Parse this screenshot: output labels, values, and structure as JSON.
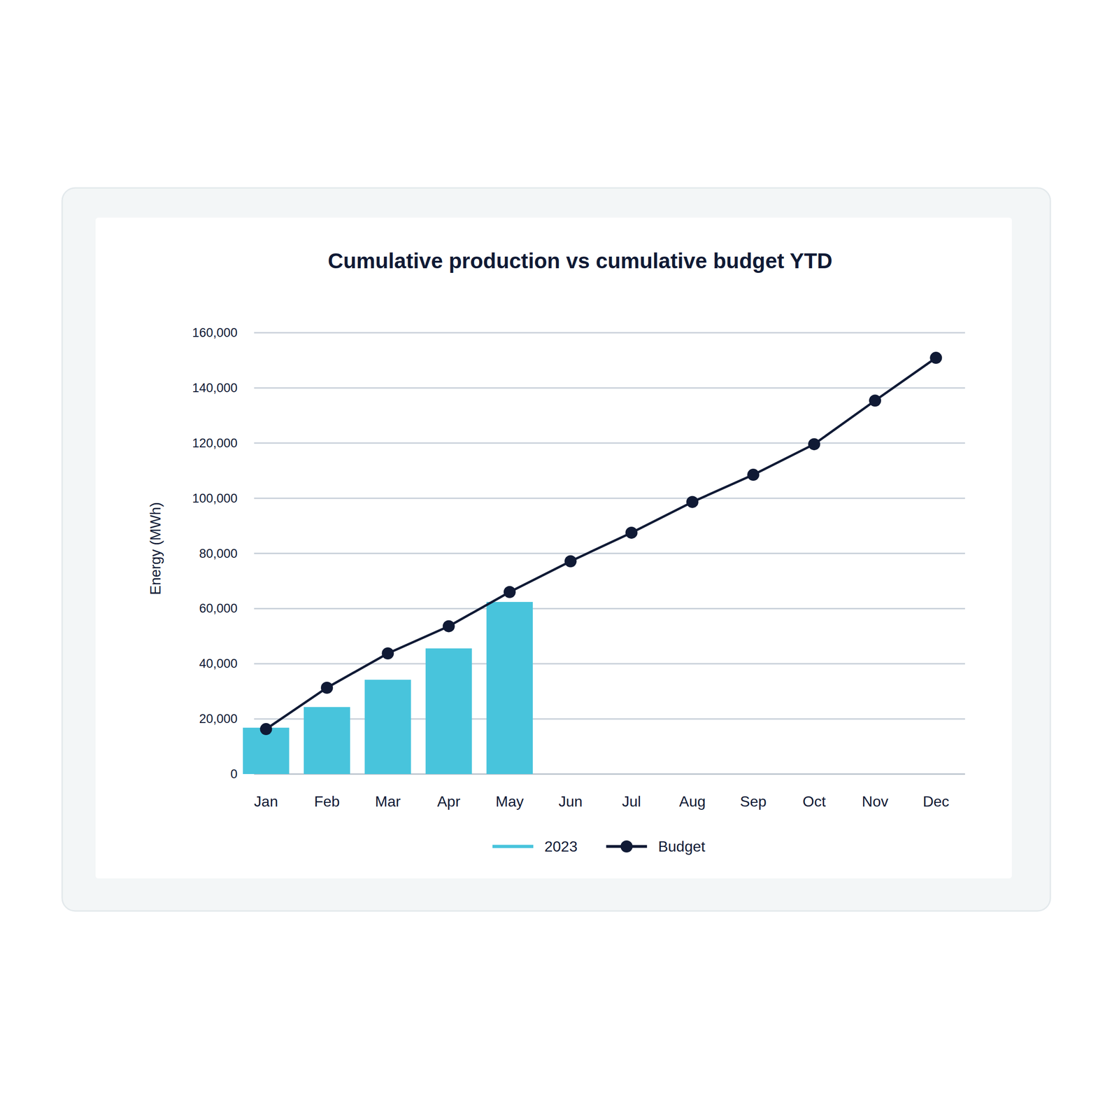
{
  "chart_data": {
    "type": "bar",
    "title": "Cumulative production vs cumulative budget YTD",
    "y_label": "Energy (MWh)",
    "categories": [
      "Jan",
      "Feb",
      "Mar",
      "Apr",
      "May",
      "Jun",
      "Jul",
      "Aug",
      "Sep",
      "Oct",
      "Nov",
      "Dec"
    ],
    "series": [
      {
        "name": "2023",
        "type": "bar",
        "color": "#48c4dc",
        "values": [
          16800,
          24300,
          34200,
          45550,
          62400,
          null,
          null,
          null,
          null,
          null,
          null,
          null
        ]
      },
      {
        "name": "Budget",
        "type": "line",
        "color": "#101a35",
        "marker": "circle",
        "line_style": "solid",
        "values": [
          16300,
          31300,
          43750,
          53600,
          66000,
          77150,
          87500,
          98650,
          108500,
          119600,
          135400,
          150900
        ]
      }
    ],
    "ylim": [
      0,
      160000
    ],
    "yticks": [
      0,
      {
        "value": 20000,
        "label": "20,000"
      },
      {
        "value": 40000,
        "label": "40,000"
      },
      {
        "value": 60000,
        "label": "60,000"
      },
      {
        "value": 80000,
        "label": "80,000"
      },
      {
        "value": 100000,
        "label": "100,000"
      },
      {
        "value": 120000,
        "label": "120,000"
      },
      {
        "value": 140000,
        "label": "140,000"
      },
      {
        "value": 160000,
        "label": "160,000"
      }
    ],
    "grid": true,
    "legend": "bottom"
  }
}
